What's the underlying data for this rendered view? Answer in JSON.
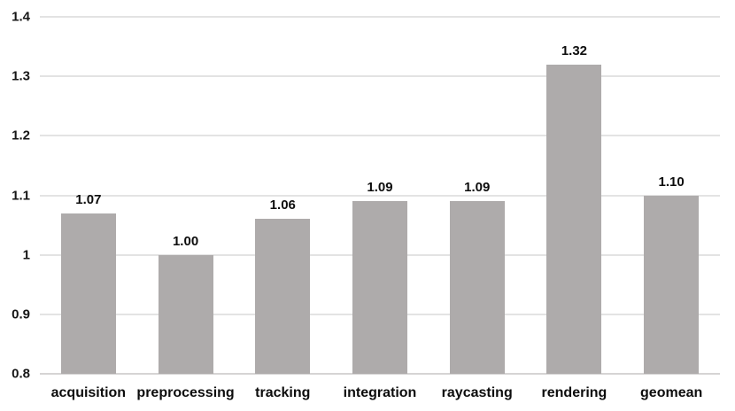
{
  "chart_data": {
    "type": "bar",
    "title": "",
    "xlabel": "",
    "ylabel": "",
    "categories": [
      "acquisition",
      "preprocessing",
      "tracking",
      "integration",
      "raycasting",
      "rendering",
      "geomean"
    ],
    "values": [
      1.07,
      1.0,
      1.06,
      1.09,
      1.09,
      1.32,
      1.1
    ],
    "value_labels": [
      "1.07",
      "1.00",
      "1.06",
      "1.09",
      "1.09",
      "1.32",
      "1.10"
    ],
    "ylim": [
      0.8,
      1.4
    ],
    "ytick_labels": [
      "1.4",
      "1.3",
      "1.2",
      "1.1",
      "1",
      "0.9",
      "0.8"
    ],
    "ytick_values": [
      1.4,
      1.3,
      1.2,
      1.1,
      1.0,
      0.9,
      0.8
    ],
    "grid": "horizontal",
    "legend_position": "none",
    "bar_color": "#aeabab",
    "gridline_color": "#e3e3e3",
    "baseline_color": "#d6d4d4",
    "text_color": "#0d0d0d"
  }
}
